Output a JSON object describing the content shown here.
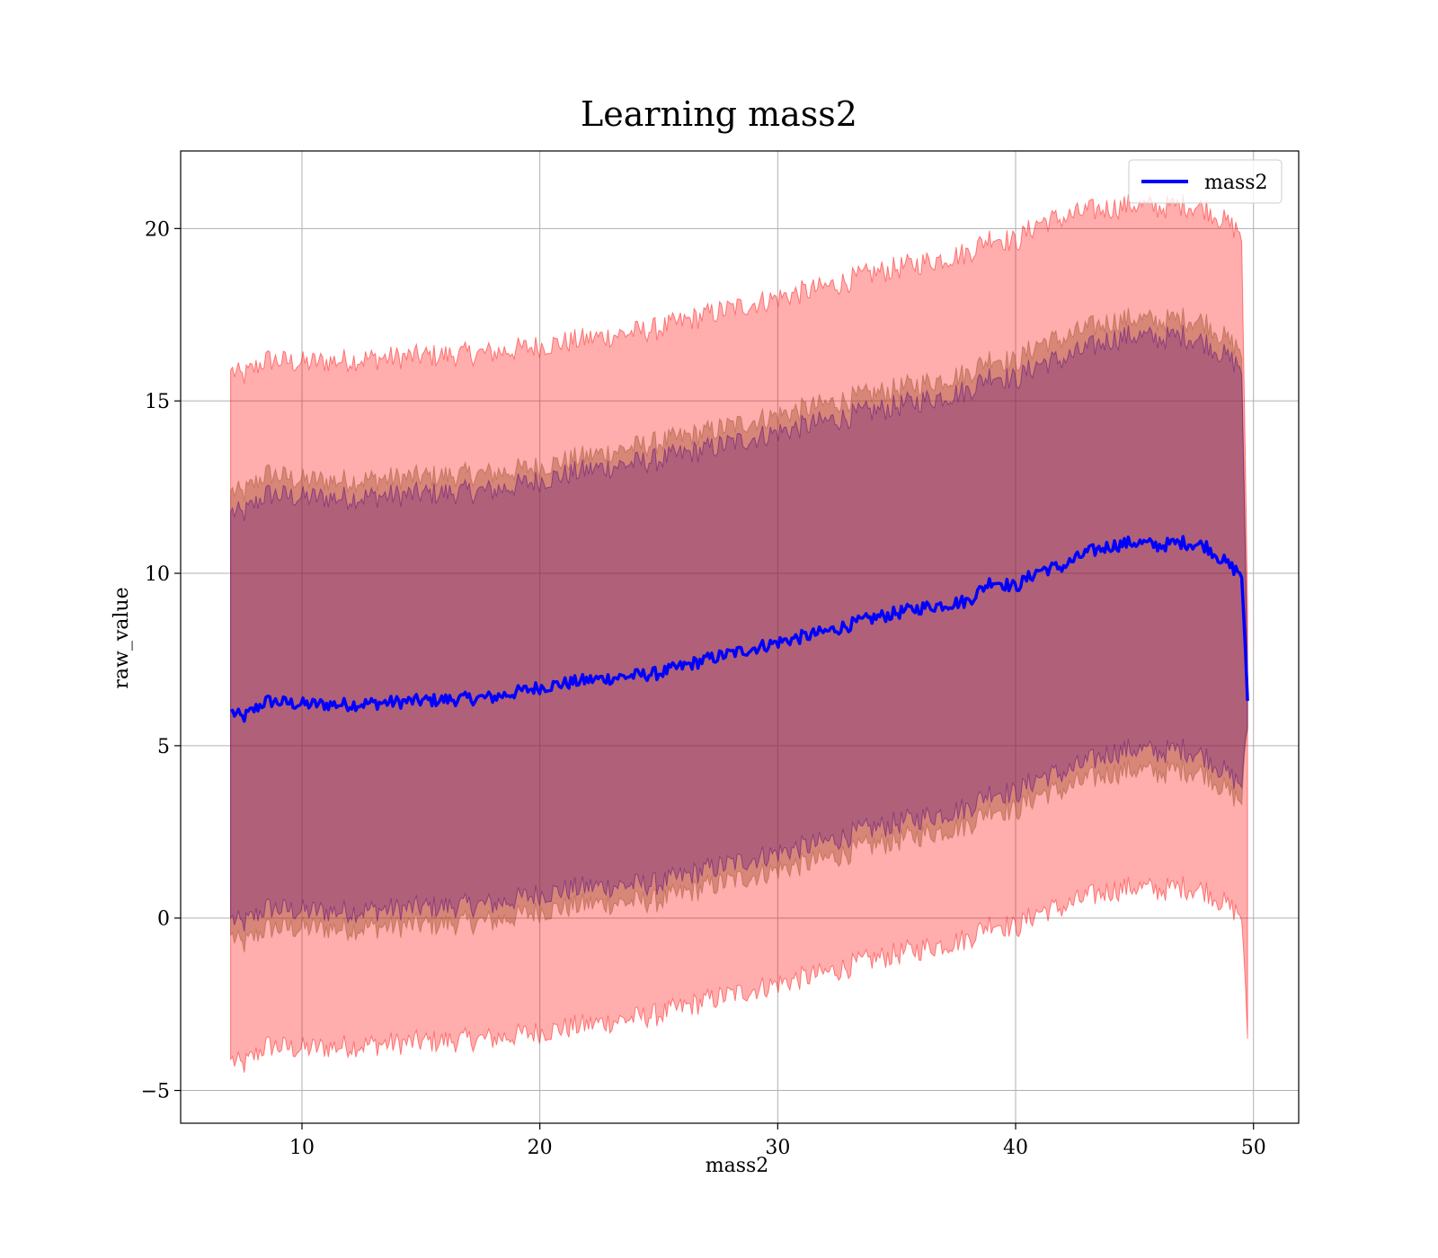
{
  "chart_data": {
    "type": "line",
    "title": "Learning mass2",
    "xlabel": "mass2",
    "ylabel": "raw_value",
    "xlim": [
      4.9,
      51.9
    ],
    "ylim": [
      -5.95,
      22.25
    ],
    "xticks": [
      10,
      20,
      30,
      40,
      50
    ],
    "yticks": [
      -5,
      0,
      5,
      10,
      15,
      20
    ],
    "xtick_labels": [
      "10",
      "20",
      "30",
      "40",
      "50"
    ],
    "ytick_labels": [
      "−5",
      "0",
      "5",
      "10",
      "15",
      "20"
    ],
    "grid": true,
    "legend": {
      "placement": "top-right",
      "entries": [
        "mass2"
      ]
    },
    "colors": {
      "line": "#0000ff",
      "band_outer": "#ff0000",
      "band_mid": "#a0522d",
      "band_inner": "#4b0082"
    },
    "series": [
      {
        "name": "mass2",
        "role": "mean line",
        "x": [
          7.0,
          7.5,
          8.5,
          10,
          12,
          15,
          18,
          20,
          22,
          25,
          27,
          30,
          32,
          34,
          36,
          38,
          39,
          40,
          41,
          42,
          43,
          44,
          45,
          46,
          47,
          48,
          49,
          49.5,
          49.75
        ],
        "y": [
          6.0,
          5.8,
          6.3,
          6.2,
          6.2,
          6.3,
          6.4,
          6.7,
          6.9,
          7.1,
          7.5,
          8.0,
          8.3,
          8.7,
          9.0,
          9.2,
          9.8,
          9.6,
          10.1,
          10.2,
          10.6,
          10.8,
          10.9,
          10.8,
          10.9,
          10.8,
          10.2,
          10.0,
          6.3
        ]
      },
      {
        "role": "outer band (± wide)",
        "x": [
          7.0,
          7.5,
          8.5,
          10,
          12,
          15,
          18,
          20,
          22,
          25,
          27,
          30,
          32,
          34,
          36,
          38,
          39,
          40,
          41,
          42,
          43,
          44,
          45,
          46,
          47,
          48,
          49,
          49.5,
          49.75
        ],
        "upper": [
          15.9,
          15.7,
          16.2,
          16.1,
          16.2,
          16.3,
          16.4,
          16.6,
          16.8,
          17.1,
          17.5,
          18.0,
          18.3,
          18.7,
          19.0,
          19.3,
          19.8,
          19.6,
          20.2,
          20.3,
          20.5,
          20.6,
          20.7,
          20.6,
          20.7,
          20.6,
          20.1,
          19.9,
          9.0
        ],
        "lower": [
          -4.1,
          -4.3,
          -3.7,
          -3.8,
          -3.7,
          -3.6,
          -3.5,
          -3.3,
          -3.1,
          -2.8,
          -2.4,
          -1.9,
          -1.6,
          -1.2,
          -0.9,
          -0.6,
          -0.1,
          -0.3,
          0.2,
          0.3,
          0.6,
          0.8,
          0.9,
          0.8,
          0.9,
          0.8,
          0.3,
          0.1,
          -3.5
        ]
      },
      {
        "role": "middle band",
        "x": [
          7.0,
          7.5,
          8.5,
          10,
          12,
          15,
          18,
          20,
          22,
          25,
          27,
          30,
          32,
          34,
          36,
          38,
          39,
          40,
          41,
          42,
          43,
          44,
          45,
          46,
          47,
          48,
          49,
          49.5,
          49.75
        ],
        "upper": [
          12.4,
          12.3,
          12.9,
          12.7,
          12.7,
          12.8,
          12.9,
          13.1,
          13.4,
          13.8,
          14.1,
          14.6,
          14.9,
          15.2,
          15.5,
          15.8,
          16.3,
          16.1,
          16.7,
          16.8,
          17.1,
          17.3,
          17.4,
          17.3,
          17.4,
          17.3,
          16.7,
          16.5,
          7.0
        ],
        "lower": [
          -0.5,
          -0.8,
          -0.3,
          -0.3,
          -0.3,
          -0.2,
          -0.1,
          0.2,
          0.4,
          0.5,
          0.9,
          1.4,
          1.7,
          2.1,
          2.4,
          2.7,
          3.2,
          3.1,
          3.6,
          3.7,
          4.0,
          4.2,
          4.3,
          4.2,
          4.3,
          4.2,
          3.6,
          3.4,
          5.5
        ]
      },
      {
        "role": "inner band",
        "x": [
          7.0,
          7.5,
          8.5,
          10,
          12,
          15,
          18,
          20,
          22,
          25,
          27,
          30,
          32,
          34,
          36,
          38,
          39,
          40,
          41,
          42,
          43,
          44,
          45,
          46,
          47,
          48,
          49,
          49.5,
          49.75
        ],
        "upper": [
          11.8,
          11.7,
          12.3,
          12.2,
          12.2,
          12.3,
          12.4,
          12.7,
          13.0,
          13.3,
          13.6,
          14.1,
          14.4,
          14.7,
          15.0,
          15.3,
          15.8,
          15.6,
          16.1,
          16.2,
          16.5,
          16.8,
          16.9,
          16.8,
          16.9,
          16.7,
          16.2,
          16.0,
          7.0
        ],
        "lower": [
          0.0,
          -0.2,
          0.3,
          0.2,
          0.2,
          0.3,
          0.4,
          0.7,
          0.9,
          1.0,
          1.4,
          1.9,
          2.2,
          2.6,
          2.9,
          3.2,
          3.7,
          3.6,
          4.1,
          4.2,
          4.5,
          4.8,
          4.9,
          4.8,
          4.9,
          4.7,
          4.1,
          3.9,
          5.5
        ]
      }
    ]
  }
}
